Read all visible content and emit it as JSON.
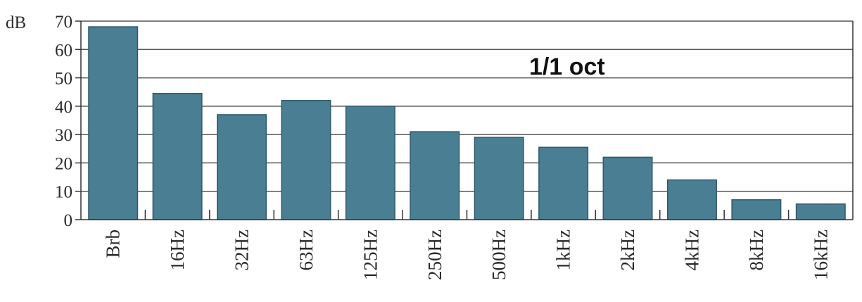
{
  "chart_data": {
    "type": "bar",
    "ylabel": "dB",
    "annotation": "1/1 oct",
    "categories": [
      "Brb",
      "16Hz",
      "32Hz",
      "63Hz",
      "125Hz",
      "250Hz",
      "500Hz",
      "1kHz",
      "2kHz",
      "4kHz",
      "8kHz",
      "16kHz"
    ],
    "values": [
      68,
      44.5,
      37,
      42,
      40,
      31,
      29,
      25.5,
      22,
      14,
      7,
      5.5
    ],
    "ylim": [
      0,
      70
    ],
    "yticks": [
      0,
      10,
      20,
      30,
      40,
      50,
      60,
      70
    ],
    "grid": true,
    "colors": {
      "bar": "#4a7f93",
      "bar_edge": "#2f5a6a",
      "grid": "#555555",
      "axis": "#333333"
    }
  }
}
